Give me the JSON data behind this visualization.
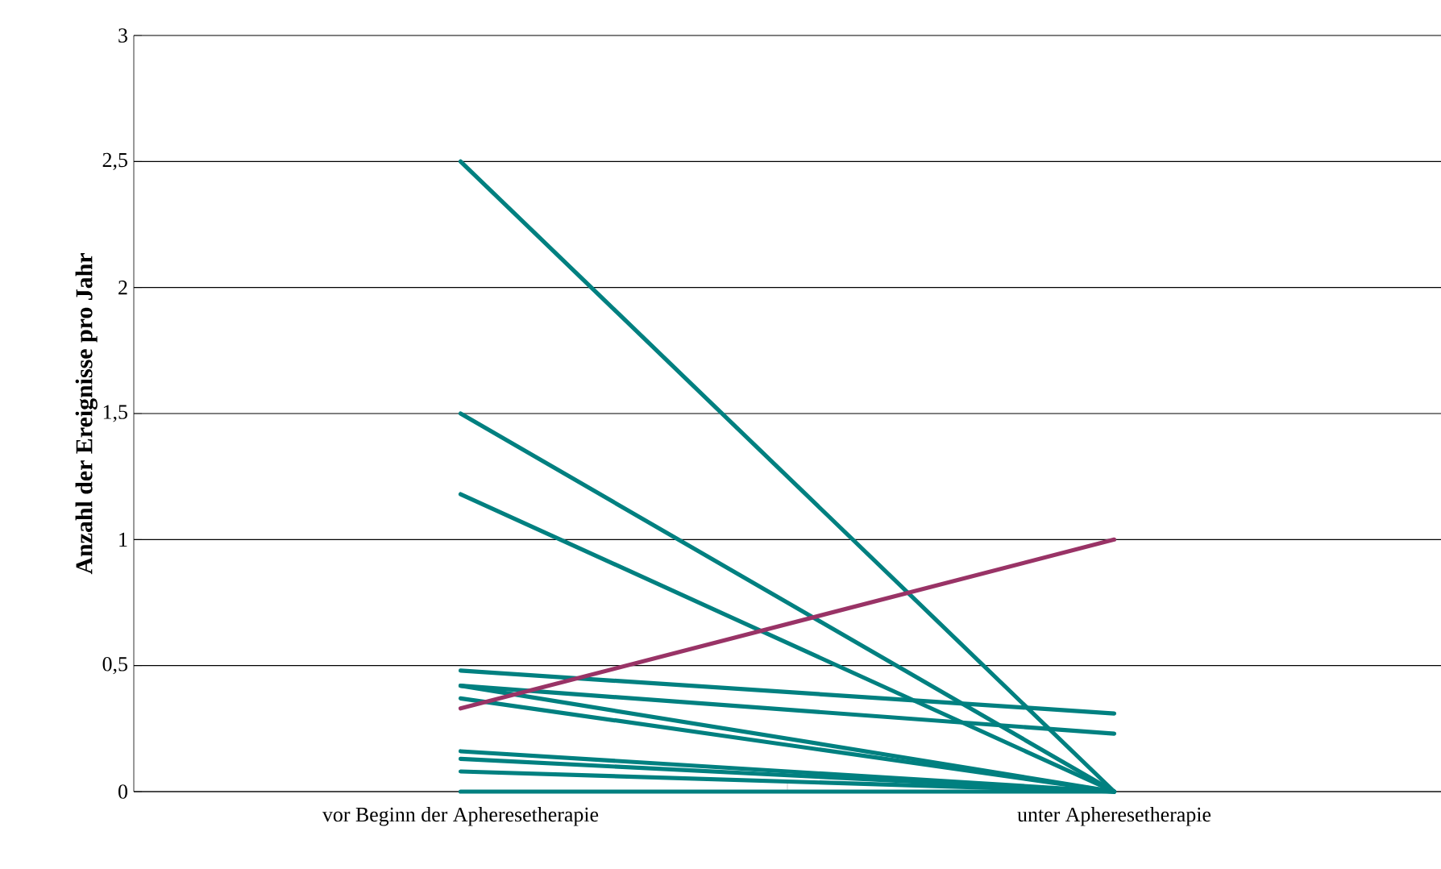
{
  "chart_data": {
    "type": "line",
    "ylabel": "Anzahl der Ereignisse pro Jahr",
    "categories": [
      "vor Beginn der Apheresetherapie",
      "unter Apheresetherapie"
    ],
    "series": [
      {
        "color": "#008080",
        "values": [
          2.5,
          0
        ]
      },
      {
        "color": "#008080",
        "values": [
          1.5,
          0
        ]
      },
      {
        "color": "#008080",
        "values": [
          1.18,
          0
        ]
      },
      {
        "color": "#008080",
        "values": [
          0.48,
          0.31
        ]
      },
      {
        "color": "#008080",
        "values": [
          0.42,
          0.23
        ]
      },
      {
        "color": "#008080",
        "values": [
          0.42,
          0
        ]
      },
      {
        "color": "#008080",
        "values": [
          0.37,
          0
        ]
      },
      {
        "color": "#008080",
        "values": [
          0.16,
          0
        ]
      },
      {
        "color": "#008080",
        "values": [
          0.13,
          0
        ]
      },
      {
        "color": "#008080",
        "values": [
          0.08,
          0
        ]
      },
      {
        "color": "#008080",
        "values": [
          0,
          0
        ]
      },
      {
        "color": "#993366",
        "values": [
          0.33,
          1
        ]
      }
    ],
    "ylim": [
      0,
      3
    ],
    "yticks": [
      0,
      {
        "value": 0.5,
        "label": "0,5"
      },
      1,
      {
        "value": 1.5,
        "label": "1,5"
      },
      2,
      {
        "value": 2.5,
        "label": "2,5"
      },
      3
    ],
    "grid": "y",
    "marker": "none",
    "line_style": "solid"
  }
}
